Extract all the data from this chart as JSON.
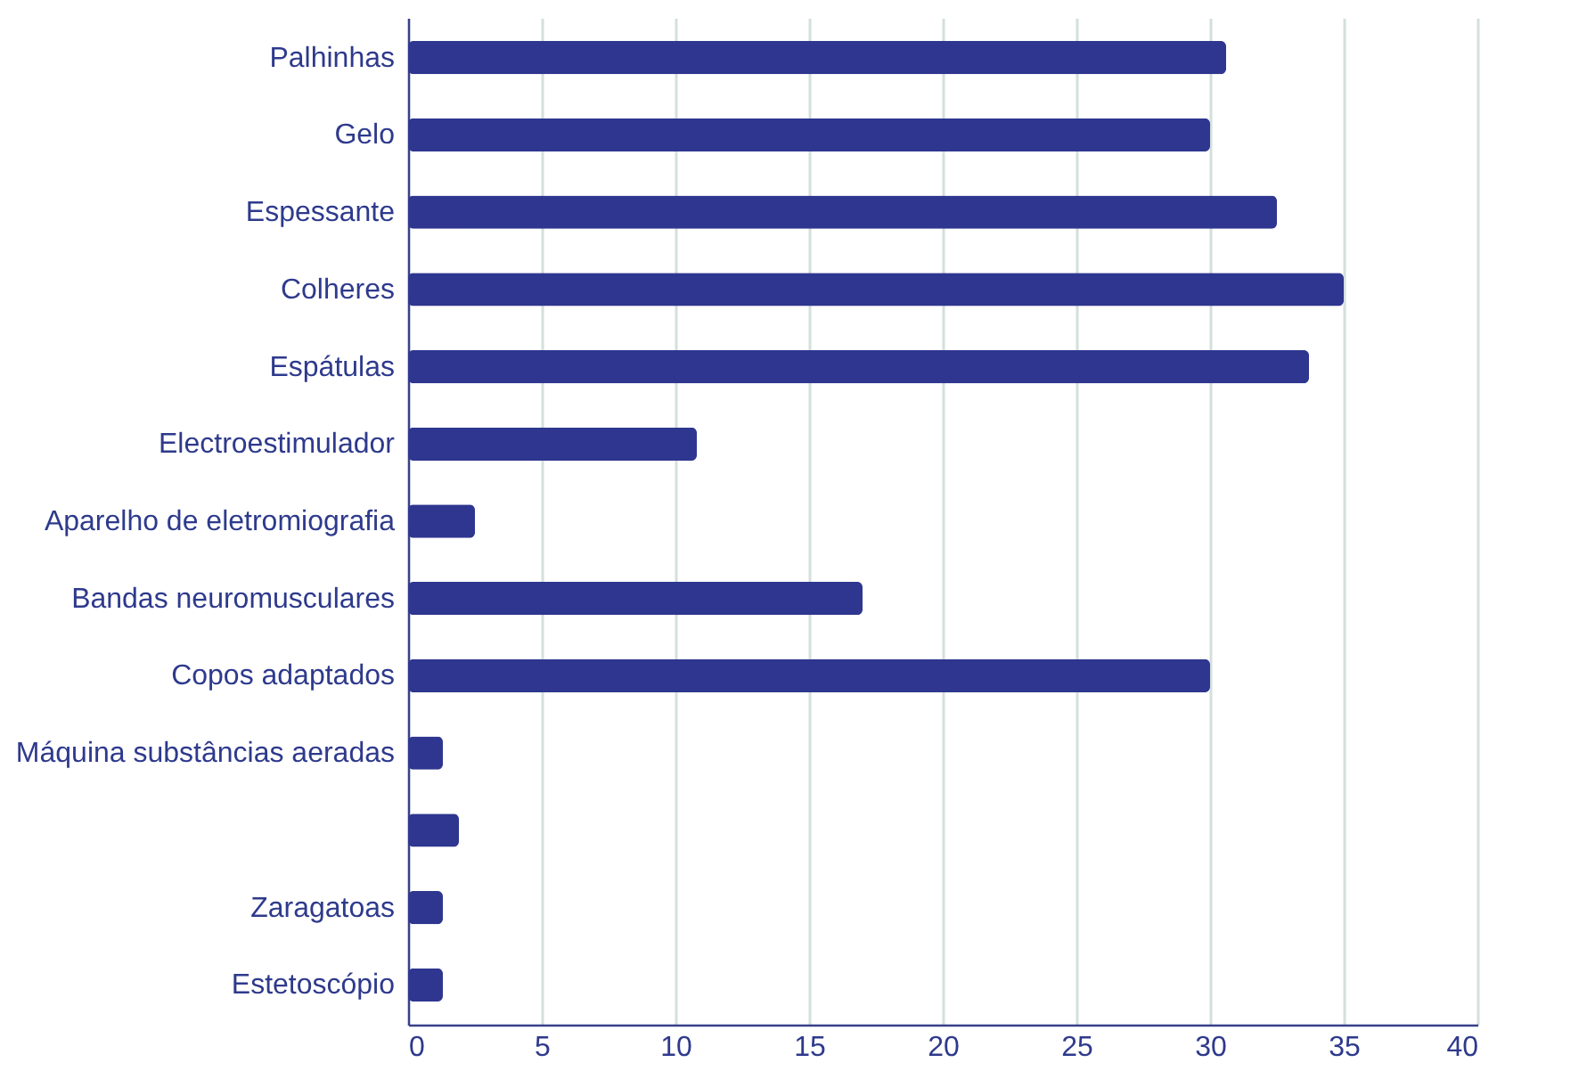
{
  "chart_data": {
    "type": "bar",
    "orientation": "horizontal",
    "categories": [
      "Palhinhas",
      "Gelo",
      "Espessante",
      "Colheres",
      "Espátulas",
      "Electroestimulador",
      "Aparelho de eletromiografia",
      "Bandas neuromusculares",
      "Copos adaptados",
      "Máquina substâncias aeradas",
      null,
      "Zaragatoas",
      "Estetoscópio"
    ],
    "values": [
      30.6,
      30,
      32.5,
      35,
      33.7,
      10.8,
      2.5,
      17,
      30,
      1.3,
      1.9,
      1.3,
      1.3
    ],
    "color": "#2e368f",
    "xlim": [
      0,
      40
    ],
    "xticks": [
      0,
      5,
      10,
      15,
      20,
      25,
      30,
      35,
      40
    ],
    "grid": "x"
  }
}
